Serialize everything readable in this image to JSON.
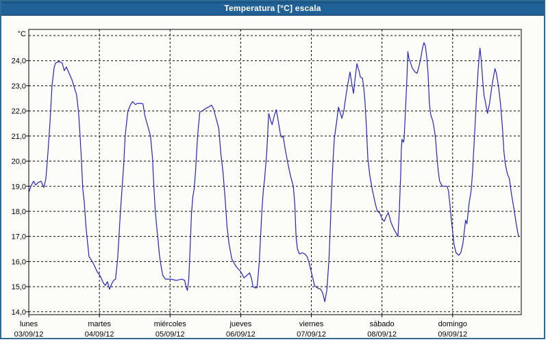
{
  "window": {
    "title": "Temperatura [°C] escala"
  },
  "colors": {
    "titlebar": "#1f6195",
    "window_border": "#2e6a94",
    "plot_background": "#fcfcf9",
    "grid": "#000000",
    "axis": "#000000",
    "series_line": "#2222c8",
    "label_text": "#000000"
  },
  "chart_data": {
    "type": "line",
    "title": "Temperatura [°C] escala",
    "ylabel": "°C",
    "xlabel": "",
    "ylim": [
      14.0,
      25.0
    ],
    "grid": "dashed",
    "legend": "none",
    "y_ticks": [
      {
        "v": 24,
        "label": "24,0"
      },
      {
        "v": 23,
        "label": "23,0"
      },
      {
        "v": 22,
        "label": "22,0"
      },
      {
        "v": 21,
        "label": "21,0"
      },
      {
        "v": 20,
        "label": "20,0"
      },
      {
        "v": 19,
        "label": "19,0"
      },
      {
        "v": 18,
        "label": "18,0"
      },
      {
        "v": 17,
        "label": "17,0"
      },
      {
        "v": 16,
        "label": "16,0"
      },
      {
        "v": 15,
        "label": "15,0"
      },
      {
        "v": 14,
        "label": "14,0"
      }
    ],
    "x_days": [
      {
        "name": "lunes",
        "date": "03/09/12"
      },
      {
        "name": "martes",
        "date": "04/09/12"
      },
      {
        "name": "miércoles",
        "date": "05/09/12"
      },
      {
        "name": "jueves",
        "date": "06/09/12"
      },
      {
        "name": "viernes",
        "date": "07/09/12"
      },
      {
        "name": "sábado",
        "date": "08/09/12"
      },
      {
        "name": "domingo",
        "date": "09/09/12"
      }
    ],
    "series": [
      {
        "name": "Temperatura [°C]",
        "color": "#2222c8",
        "points": [
          [
            0.0,
            18.75
          ],
          [
            0.03,
            19.0
          ],
          [
            0.068,
            19.2
          ],
          [
            0.097,
            19.05
          ],
          [
            0.135,
            19.15
          ],
          [
            0.174,
            19.2
          ],
          [
            0.213,
            18.95
          ],
          [
            0.242,
            19.3
          ],
          [
            0.271,
            20.3
          ],
          [
            0.3,
            21.5
          ],
          [
            0.329,
            23.0
          ],
          [
            0.358,
            23.7
          ],
          [
            0.377,
            23.9
          ],
          [
            0.426,
            23.97
          ],
          [
            0.474,
            23.9
          ],
          [
            0.503,
            23.6
          ],
          [
            0.532,
            23.75
          ],
          [
            0.571,
            23.5
          ],
          [
            0.61,
            23.25
          ],
          [
            0.648,
            22.9
          ],
          [
            0.677,
            22.65
          ],
          [
            0.706,
            21.9
          ],
          [
            0.726,
            21.0
          ],
          [
            0.745,
            20.1
          ],
          [
            0.764,
            18.9
          ],
          [
            0.784,
            18.4
          ],
          [
            0.813,
            17.3
          ],
          [
            0.852,
            16.2
          ],
          [
            0.91,
            15.95
          ],
          [
            0.968,
            15.6
          ],
          [
            1.016,
            15.4
          ],
          [
            1.055,
            15.15
          ],
          [
            1.084,
            15.05
          ],
          [
            1.113,
            15.2
          ],
          [
            1.142,
            14.9
          ],
          [
            1.171,
            15.1
          ],
          [
            1.2,
            15.25
          ],
          [
            1.229,
            15.3
          ],
          [
            1.258,
            16.1
          ],
          [
            1.277,
            17.0
          ],
          [
            1.297,
            18.0
          ],
          [
            1.326,
            19.1
          ],
          [
            1.345,
            19.9
          ],
          [
            1.364,
            21.0
          ],
          [
            1.403,
            22.0
          ],
          [
            1.442,
            22.25
          ],
          [
            1.471,
            22.37
          ],
          [
            1.51,
            22.25
          ],
          [
            1.539,
            22.3
          ],
          [
            1.577,
            22.3
          ],
          [
            1.616,
            22.28
          ],
          [
            1.645,
            21.8
          ],
          [
            1.684,
            21.4
          ],
          [
            1.723,
            21.0
          ],
          [
            1.752,
            20.1
          ],
          [
            1.771,
            19.0
          ],
          [
            1.79,
            18.05
          ],
          [
            1.81,
            17.4
          ],
          [
            1.829,
            16.9
          ],
          [
            1.848,
            16.3
          ],
          [
            1.868,
            15.9
          ],
          [
            1.897,
            15.45
          ],
          [
            1.935,
            15.3
          ],
          [
            2.013,
            15.3
          ],
          [
            2.09,
            15.25
          ],
          [
            2.168,
            15.3
          ],
          [
            2.206,
            15.25
          ],
          [
            2.226,
            15.0
          ],
          [
            2.245,
            14.85
          ],
          [
            2.265,
            15.3
          ],
          [
            2.284,
            16.5
          ],
          [
            2.303,
            17.9
          ],
          [
            2.323,
            18.6
          ],
          [
            2.342,
            18.9
          ],
          [
            2.361,
            19.6
          ],
          [
            2.39,
            21.0
          ],
          [
            2.42,
            21.95
          ],
          [
            2.458,
            22.0
          ],
          [
            2.507,
            22.1
          ],
          [
            2.545,
            22.15
          ],
          [
            2.584,
            22.23
          ],
          [
            2.613,
            22.1
          ],
          [
            2.652,
            21.7
          ],
          [
            2.69,
            21.3
          ],
          [
            2.719,
            20.3
          ],
          [
            2.748,
            19.6
          ],
          [
            2.777,
            18.6
          ],
          [
            2.806,
            17.4
          ],
          [
            2.835,
            16.7
          ],
          [
            2.874,
            16.1
          ],
          [
            2.913,
            15.9
          ],
          [
            2.952,
            15.75
          ],
          [
            3.0,
            15.6
          ],
          [
            3.048,
            15.35
          ],
          [
            3.087,
            15.45
          ],
          [
            3.126,
            15.55
          ],
          [
            3.155,
            15.3
          ],
          [
            3.174,
            15.0
          ],
          [
            3.203,
            14.95
          ],
          [
            3.232,
            14.96
          ],
          [
            3.261,
            15.9
          ],
          [
            3.281,
            17.0
          ],
          [
            3.3,
            18.0
          ],
          [
            3.319,
            18.8
          ],
          [
            3.339,
            19.3
          ],
          [
            3.368,
            20.3
          ],
          [
            3.397,
            21.9
          ],
          [
            3.426,
            21.6
          ],
          [
            3.445,
            21.45
          ],
          [
            3.474,
            21.8
          ],
          [
            3.503,
            22.05
          ],
          [
            3.532,
            21.6
          ],
          [
            3.561,
            21.1
          ],
          [
            3.581,
            20.95
          ],
          [
            3.6,
            21.0
          ],
          [
            3.629,
            20.5
          ],
          [
            3.668,
            19.9
          ],
          [
            3.706,
            19.4
          ],
          [
            3.745,
            19.0
          ],
          [
            3.765,
            18.3
          ],
          [
            3.784,
            17.0
          ],
          [
            3.803,
            16.5
          ],
          [
            3.832,
            16.3
          ],
          [
            3.871,
            16.35
          ],
          [
            3.91,
            16.3
          ],
          [
            3.939,
            16.2
          ],
          [
            3.968,
            15.95
          ],
          [
            4.007,
            15.5
          ],
          [
            4.045,
            15.05
          ],
          [
            4.084,
            14.95
          ],
          [
            4.132,
            14.9
          ],
          [
            4.161,
            14.75
          ],
          [
            4.19,
            14.4
          ],
          [
            4.219,
            14.85
          ],
          [
            4.248,
            16.0
          ],
          [
            4.268,
            17.3
          ],
          [
            4.287,
            18.8
          ],
          [
            4.306,
            20.0
          ],
          [
            4.326,
            20.9
          ],
          [
            4.355,
            21.5
          ],
          [
            4.384,
            22.15
          ],
          [
            4.413,
            21.9
          ],
          [
            4.432,
            21.7
          ],
          [
            4.461,
            22.0
          ],
          [
            4.49,
            22.6
          ],
          [
            4.519,
            23.1
          ],
          [
            4.548,
            23.55
          ],
          [
            4.577,
            23.0
          ],
          [
            4.597,
            22.7
          ],
          [
            4.616,
            23.2
          ],
          [
            4.645,
            23.88
          ],
          [
            4.674,
            23.6
          ],
          [
            4.694,
            23.35
          ],
          [
            4.723,
            23.3
          ],
          [
            4.742,
            22.95
          ],
          [
            4.761,
            22.3
          ],
          [
            4.781,
            21.3
          ],
          [
            4.8,
            20.1
          ],
          [
            4.829,
            19.4
          ],
          [
            4.868,
            18.8
          ],
          [
            4.906,
            18.3
          ],
          [
            4.935,
            18.0
          ],
          [
            4.965,
            17.95
          ],
          [
            5.003,
            17.7
          ],
          [
            5.032,
            17.6
          ],
          [
            5.061,
            17.8
          ],
          [
            5.09,
            17.95
          ],
          [
            5.129,
            17.55
          ],
          [
            5.168,
            17.3
          ],
          [
            5.197,
            17.15
          ],
          [
            5.226,
            17.0
          ],
          [
            5.245,
            18.0
          ],
          [
            5.265,
            19.5
          ],
          [
            5.274,
            20.5
          ],
          [
            5.284,
            20.87
          ],
          [
            5.303,
            20.75
          ],
          [
            5.313,
            20.87
          ],
          [
            5.332,
            22.0
          ],
          [
            5.352,
            23.2
          ],
          [
            5.366,
            24.36
          ],
          [
            5.381,
            24.1
          ],
          [
            5.4,
            23.95
          ],
          [
            5.429,
            23.7
          ],
          [
            5.468,
            23.55
          ],
          [
            5.497,
            23.5
          ],
          [
            5.526,
            23.8
          ],
          [
            5.555,
            24.2
          ],
          [
            5.574,
            24.5
          ],
          [
            5.594,
            24.72
          ],
          [
            5.613,
            24.6
          ],
          [
            5.632,
            24.2
          ],
          [
            5.652,
            23.5
          ],
          [
            5.671,
            22.3
          ],
          [
            5.69,
            21.85
          ],
          [
            5.719,
            21.6
          ],
          [
            5.739,
            21.3
          ],
          [
            5.758,
            20.9
          ],
          [
            5.777,
            20.2
          ],
          [
            5.797,
            19.6
          ],
          [
            5.816,
            19.2
          ],
          [
            5.855,
            19.0
          ],
          [
            5.923,
            19.0
          ],
          [
            5.942,
            18.8
          ],
          [
            5.961,
            18.3
          ],
          [
            5.981,
            17.7
          ],
          [
            6.0,
            17.2
          ],
          [
            6.019,
            16.7
          ],
          [
            6.048,
            16.35
          ],
          [
            6.087,
            16.25
          ],
          [
            6.116,
            16.35
          ],
          [
            6.145,
            16.7
          ],
          [
            6.165,
            17.2
          ],
          [
            6.184,
            17.65
          ],
          [
            6.203,
            17.5
          ],
          [
            6.232,
            18.3
          ],
          [
            6.261,
            18.8
          ],
          [
            6.281,
            19.5
          ],
          [
            6.3,
            20.5
          ],
          [
            6.319,
            21.5
          ],
          [
            6.339,
            22.6
          ],
          [
            6.358,
            23.5
          ],
          [
            6.377,
            24.2
          ],
          [
            6.387,
            24.5
          ],
          [
            6.406,
            24.0
          ],
          [
            6.426,
            23.2
          ],
          [
            6.445,
            22.6
          ],
          [
            6.465,
            22.35
          ],
          [
            6.494,
            21.9
          ],
          [
            6.523,
            22.3
          ],
          [
            6.552,
            22.9
          ],
          [
            6.581,
            23.4
          ],
          [
            6.6,
            23.68
          ],
          [
            6.619,
            23.5
          ],
          [
            6.648,
            23.0
          ],
          [
            6.677,
            22.3
          ],
          [
            6.706,
            21.3
          ],
          [
            6.726,
            20.4
          ],
          [
            6.745,
            19.9
          ],
          [
            6.774,
            19.5
          ],
          [
            6.803,
            19.3
          ],
          [
            6.832,
            18.7
          ],
          [
            6.871,
            18.05
          ],
          [
            6.9,
            17.5
          ],
          [
            6.929,
            17.05
          ],
          [
            6.939,
            17.0
          ]
        ]
      }
    ]
  }
}
